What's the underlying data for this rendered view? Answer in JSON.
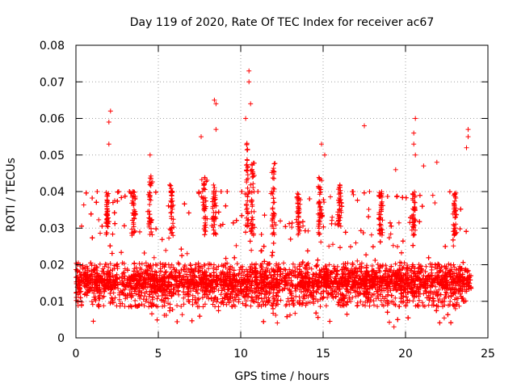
{
  "chart_data": {
    "type": "scatter",
    "title": "Day 119 of 2020, Rate Of TEC Index for receiver ac67",
    "xlabel": "GPS time / hours",
    "ylabel": "ROTI / TECUs",
    "xlim": [
      0,
      25
    ],
    "ylim": [
      0,
      0.08
    ],
    "xticks": [
      0,
      5,
      10,
      15,
      20,
      25
    ],
    "xtick_labels": [
      "0",
      "5",
      "10",
      "15",
      "20",
      "25"
    ],
    "yticks": [
      0,
      0.01,
      0.02,
      0.03,
      0.04,
      0.05,
      0.06,
      0.07,
      0.08
    ],
    "ytick_labels": [
      "0",
      "0.01",
      "0.02",
      "0.03",
      "0.04",
      "0.05",
      "0.06",
      "0.07",
      "0.08"
    ],
    "grid": true,
    "marker": "+",
    "color": "#ff0000",
    "series": [
      {
        "name": "ROTI",
        "band_x_range": [
          0,
          24
        ],
        "band_y_range": [
          0.004,
          0.035
        ],
        "peaks": [
          {
            "x": 2.1,
            "y": 0.062
          },
          {
            "x": 2.0,
            "y": 0.059
          },
          {
            "x": 2.0,
            "y": 0.053
          },
          {
            "x": 4.5,
            "y": 0.05
          },
          {
            "x": 7.6,
            "y": 0.055
          },
          {
            "x": 8.4,
            "y": 0.065
          },
          {
            "x": 8.5,
            "y": 0.064
          },
          {
            "x": 8.5,
            "y": 0.057
          },
          {
            "x": 10.3,
            "y": 0.06
          },
          {
            "x": 10.5,
            "y": 0.073
          },
          {
            "x": 10.5,
            "y": 0.07
          },
          {
            "x": 10.6,
            "y": 0.064
          },
          {
            "x": 14.9,
            "y": 0.053
          },
          {
            "x": 15.1,
            "y": 0.05
          },
          {
            "x": 17.5,
            "y": 0.058
          },
          {
            "x": 19.4,
            "y": 0.046
          },
          {
            "x": 20.6,
            "y": 0.06
          },
          {
            "x": 20.5,
            "y": 0.056
          },
          {
            "x": 20.5,
            "y": 0.053
          },
          {
            "x": 20.6,
            "y": 0.05
          },
          {
            "x": 21.1,
            "y": 0.047
          },
          {
            "x": 21.9,
            "y": 0.048
          },
          {
            "x": 23.8,
            "y": 0.057
          },
          {
            "x": 23.8,
            "y": 0.055
          },
          {
            "x": 23.7,
            "y": 0.052
          },
          {
            "x": 19.3,
            "y": 0.003
          }
        ],
        "clusters": [
          {
            "x": 1.9,
            "y": 0.04
          },
          {
            "x": 3.5,
            "y": 0.04
          },
          {
            "x": 4.5,
            "y": 0.045
          },
          {
            "x": 5.8,
            "y": 0.042
          },
          {
            "x": 7.8,
            "y": 0.045
          },
          {
            "x": 8.4,
            "y": 0.042
          },
          {
            "x": 10.4,
            "y": 0.054
          },
          {
            "x": 10.7,
            "y": 0.048
          },
          {
            "x": 12.0,
            "y": 0.048
          },
          {
            "x": 13.5,
            "y": 0.04
          },
          {
            "x": 14.8,
            "y": 0.045
          },
          {
            "x": 16.0,
            "y": 0.042
          },
          {
            "x": 18.5,
            "y": 0.04
          },
          {
            "x": 20.5,
            "y": 0.04
          },
          {
            "x": 23.0,
            "y": 0.04
          }
        ]
      }
    ]
  }
}
